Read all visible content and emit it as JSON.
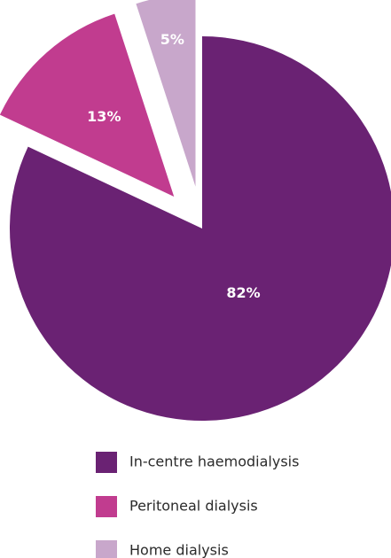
{
  "chart_data": {
    "type": "pie",
    "categories": [
      "In-centre haemodialysis",
      "Peritoneal dialysis",
      "Home dialysis"
    ],
    "values": [
      82,
      13,
      5
    ],
    "value_labels": [
      "82%",
      "13%",
      "5%"
    ],
    "colors": [
      "#6a2273",
      "#c13c8f",
      "#c8a7cb"
    ]
  }
}
